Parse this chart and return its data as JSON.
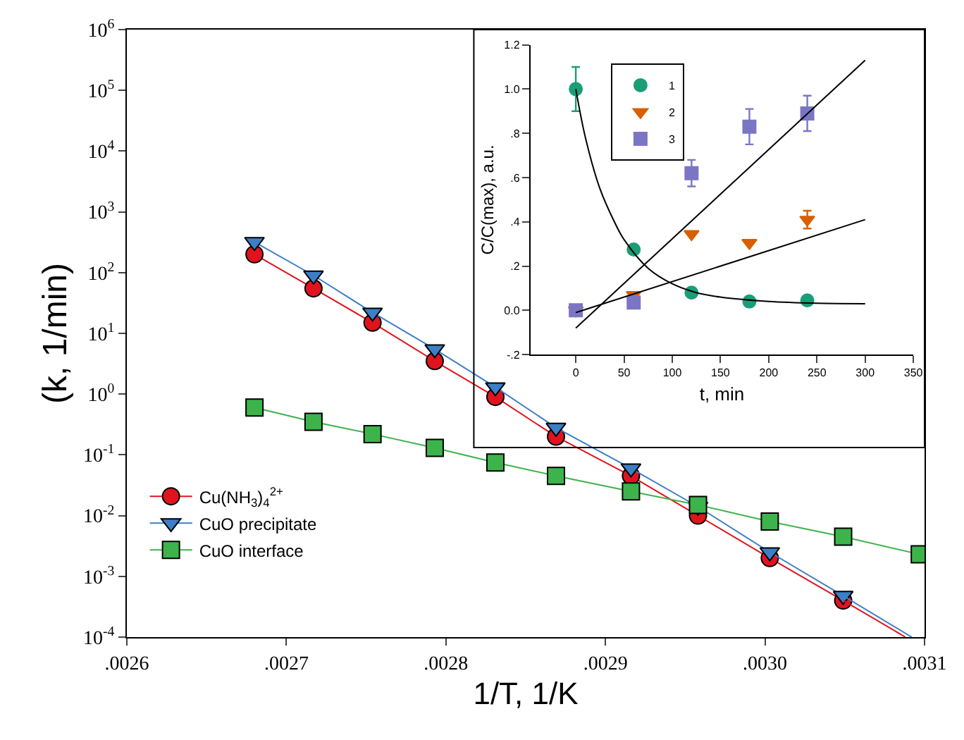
{
  "chart_data": [
    {
      "type": "line",
      "xlabel": "1/T, 1/K",
      "ylabel": "(k, 1/min)",
      "log": "y",
      "legend": "bottom left",
      "line_style": "solid",
      "xlim": [
        0.0026,
        0.0031
      ],
      "xticks": [
        {
          "value": 0.0026,
          "label": ".0026"
        },
        {
          "value": 0.0027,
          "label": ".0027"
        },
        {
          "value": 0.0028,
          "label": ".0028"
        },
        {
          "value": 0.0029,
          "label": ".0029"
        },
        {
          "value": 0.003,
          "label": ".0030"
        },
        {
          "value": 0.0031,
          "label": ".0031"
        }
      ],
      "ylim": [
        0.0001,
        1000000
      ],
      "yticks": [
        {
          "value": 0.0001,
          "label": "10$^{-4}$"
        },
        {
          "value": 0.001,
          "label": "10$^{-3}$"
        },
        {
          "value": 0.01,
          "label": "10$^{-2}$"
        },
        {
          "value": 0.1,
          "label": "10$^{-1}$"
        },
        {
          "value": 1,
          "label": "10$^{0}$"
        },
        {
          "value": 10,
          "label": "10$^{1}$"
        },
        {
          "value": 100,
          "label": "10$^{2}$"
        },
        {
          "value": 1000,
          "label": "10$^{3}$"
        },
        {
          "value": 10000,
          "label": "10$^{4}$"
        },
        {
          "value": 100000,
          "label": "10$^{5}$"
        },
        {
          "value": 1000000,
          "label": "10$^{6}$"
        }
      ],
      "series": [
        {
          "name": "Cu(NH$_{3}$)$_{4}$$^{2+}$",
          "color": "#e0141e",
          "marker": "circle",
          "x": [
            0.00268,
            0.002717,
            0.002754,
            0.002793,
            0.002831,
            0.002869,
            0.002916,
            0.002958,
            0.003003,
            0.003049
          ],
          "values": [
            200,
            55,
            15,
            3.5,
            0.9,
            0.2,
            0.045,
            0.01,
            0.002,
            0.0004
          ]
        },
        {
          "name": "CuO precipitate",
          "color": "#3d7fc6",
          "marker": "triangle",
          "x": [
            0.00268,
            0.002717,
            0.002754,
            0.002793,
            0.002831,
            0.002869,
            0.002916,
            0.002958,
            0.003003,
            0.003049
          ],
          "values": [
            320,
            90,
            22,
            5.5,
            1.3,
            0.28,
            0.06,
            0.014,
            0.0025,
            0.00048
          ]
        },
        {
          "name": "CuO interface",
          "color": "#3cb44b",
          "marker": "square",
          "x": [
            0.00268,
            0.002717,
            0.002754,
            0.002793,
            0.002831,
            0.002869,
            0.002916,
            0.002958,
            0.003003,
            0.003049,
            0.003097
          ],
          "values": [
            0.6,
            0.35,
            0.22,
            0.13,
            0.075,
            0.045,
            0.025,
            0.015,
            0.008,
            0.0045,
            0.0023
          ]
        },
        {
          "type": "line",
          "color": "#e0141e",
          "marker": "none",
          "x": [
            0.003049,
            0.003088
          ],
          "values": [
            0.0004,
            0.0001
          ]
        },
        {
          "type": "line",
          "color": "#3d7fc6",
          "marker": "none",
          "x": [
            0.003049,
            0.003092
          ],
          "values": [
            0.00048,
            0.0001
          ]
        }
      ]
    },
    {
      "type": "scatter",
      "xlabel": "t, min",
      "ylabel": "C/C(max), a.u.",
      "legend": "top left",
      "xlim": [
        -47,
        350
      ],
      "xticks": [
        0,
        50,
        100,
        150,
        200,
        250,
        300,
        350
      ],
      "ylim": [
        -0.2,
        1.2
      ],
      "yticks": [
        {
          "value": -0.2,
          "label": "-.2"
        },
        {
          "value": 0,
          "label": "0.0"
        },
        {
          "value": 0.2,
          "label": ".2"
        },
        {
          "value": 0.4,
          "label": ".4"
        },
        {
          "value": 0.6,
          "label": ".6"
        },
        {
          "value": 0.8,
          "label": ".8"
        },
        {
          "value": 1.0,
          "label": "1.0"
        },
        {
          "value": 1.2,
          "label": "1.2"
        }
      ],
      "series": [
        {
          "name": "1",
          "color": "#1a9e77",
          "marker": "circle",
          "x": [
            0,
            60,
            120,
            180,
            240
          ],
          "values": [
            1.0,
            0.275,
            0.08,
            0.04,
            0.045
          ],
          "errors": [
            0.1,
            0.02,
            null,
            null,
            null
          ]
        },
        {
          "name": "2",
          "color": "#d95f02",
          "marker": "triangle",
          "x": [
            0,
            60,
            120,
            180,
            240
          ],
          "values": [
            0.0,
            0.07,
            0.345,
            0.305,
            0.41
          ],
          "errors": [
            null,
            null,
            null,
            null,
            0.04
          ]
        },
        {
          "name": "3",
          "color": "#7b76c4",
          "marker": "square",
          "x": [
            0,
            60,
            120,
            180,
            240
          ],
          "values": [
            0.0,
            0.035,
            0.62,
            0.83,
            0.89
          ],
          "errors": [
            null,
            null,
            0.06,
            0.08,
            0.08
          ]
        },
        {
          "type": "line",
          "color": "#000000",
          "marker": "none",
          "x": [
            0,
            10,
            25,
            40,
            50,
            75,
            100,
            125,
            150,
            200,
            250,
            300
          ],
          "values": [
            1.0,
            0.78,
            0.55,
            0.4,
            0.32,
            0.19,
            0.12,
            0.08,
            0.06,
            0.04,
            0.032,
            0.03
          ]
        },
        {
          "type": "line",
          "color": "#000000",
          "marker": "none",
          "x": [
            0,
            300
          ],
          "values": [
            -0.08,
            1.13
          ]
        },
        {
          "type": "line",
          "color": "#000000",
          "marker": "none",
          "x": [
            0,
            300
          ],
          "values": [
            -0.01,
            0.41
          ]
        }
      ]
    }
  ]
}
